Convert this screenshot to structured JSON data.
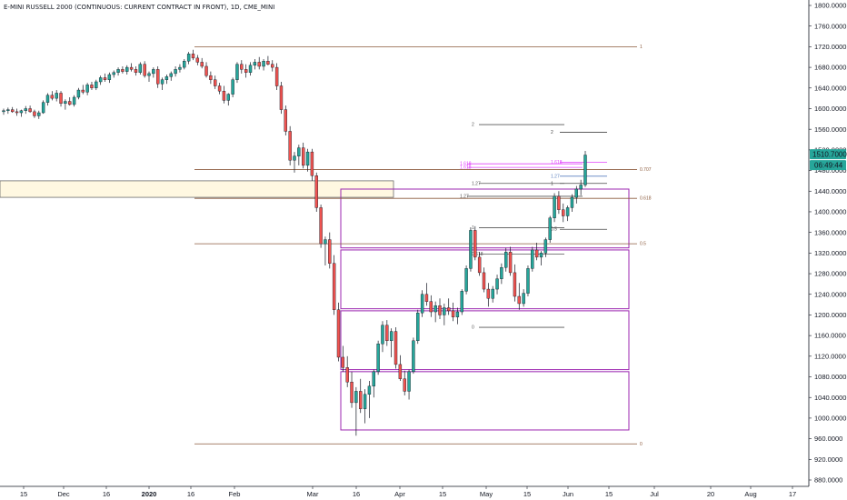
{
  "header": {
    "title": "E-MINI RUSSELL 2000 (CONTINUOUS: CURRENT CONTRACT IN FRONT), 1D, CME_MINI"
  },
  "price_badge": {
    "price": "1510.7000",
    "countdown": "06:49:44",
    "color": "#26a69a"
  },
  "colors": {
    "up": "#26a69a",
    "down": "#ef5350",
    "wick": "#131722",
    "fib_brown": "#8b5a3c",
    "fib_pink": "#e040fb",
    "box_purple": "#9c27b0",
    "zone_fill": "#fff8e1"
  },
  "chart_data": {
    "type": "candlestick",
    "y_axis": {
      "ylim": [
        870,
        1810
      ],
      "ticks": [
        "1800.0000",
        "1760.0000",
        "1720.0000",
        "1680.0000",
        "1640.0000",
        "1600.0000",
        "1560.0000",
        "1520.0000",
        "1480.0000",
        "1440.0000",
        "1400.0000",
        "1360.0000",
        "1320.0000",
        "1280.0000",
        "1240.0000",
        "1200.0000",
        "1160.0000",
        "1120.0000",
        "1080.0000",
        "1040.0000",
        "1000.0000",
        "960.0000",
        "920.0000",
        "880.0000"
      ]
    },
    "x_axis": {
      "ticks": [
        {
          "label": "15",
          "bold": false
        },
        {
          "label": "Dec",
          "bold": false
        },
        {
          "label": "16",
          "bold": false
        },
        {
          "label": "2020",
          "bold": true
        },
        {
          "label": "16",
          "bold": false
        },
        {
          "label": "Feb",
          "bold": false
        },
        {
          "label": "Mar",
          "bold": false
        },
        {
          "label": "16",
          "bold": false
        },
        {
          "label": "Apr",
          "bold": false
        },
        {
          "label": "15",
          "bold": false
        },
        {
          "label": "May",
          "bold": false
        },
        {
          "label": "15",
          "bold": false
        },
        {
          "label": "Jun",
          "bold": false
        },
        {
          "label": "15",
          "bold": false
        },
        {
          "label": "Jul",
          "bold": false
        },
        {
          "label": "20",
          "bold": false
        },
        {
          "label": "Aug",
          "bold": false
        },
        {
          "label": "17",
          "bold": false
        }
      ]
    },
    "candles": [
      [
        1594,
        1600,
        1588,
        1596
      ],
      [
        1596,
        1602,
        1590,
        1598
      ],
      [
        1598,
        1603,
        1592,
        1594
      ],
      [
        1594,
        1600,
        1586,
        1592
      ],
      [
        1592,
        1598,
        1584,
        1596
      ],
      [
        1596,
        1605,
        1590,
        1600
      ],
      [
        1600,
        1606,
        1592,
        1594
      ],
      [
        1594,
        1598,
        1582,
        1586
      ],
      [
        1586,
        1596,
        1580,
        1592
      ],
      [
        1592,
        1616,
        1590,
        1612
      ],
      [
        1612,
        1630,
        1606,
        1626
      ],
      [
        1626,
        1634,
        1616,
        1620
      ],
      [
        1620,
        1636,
        1614,
        1630
      ],
      [
        1630,
        1634,
        1604,
        1610
      ],
      [
        1610,
        1618,
        1598,
        1614
      ],
      [
        1614,
        1622,
        1606,
        1608
      ],
      [
        1608,
        1626,
        1604,
        1622
      ],
      [
        1622,
        1640,
        1618,
        1636
      ],
      [
        1636,
        1646,
        1628,
        1632
      ],
      [
        1632,
        1650,
        1626,
        1646
      ],
      [
        1646,
        1652,
        1636,
        1640
      ],
      [
        1640,
        1656,
        1636,
        1652
      ],
      [
        1652,
        1664,
        1646,
        1660
      ],
      [
        1660,
        1668,
        1652,
        1656
      ],
      [
        1656,
        1670,
        1650,
        1666
      ],
      [
        1666,
        1674,
        1660,
        1670
      ],
      [
        1670,
        1680,
        1664,
        1676
      ],
      [
        1676,
        1682,
        1668,
        1672
      ],
      [
        1672,
        1684,
        1666,
        1680
      ],
      [
        1680,
        1688,
        1672,
        1676
      ],
      [
        1676,
        1682,
        1664,
        1670
      ],
      [
        1670,
        1690,
        1666,
        1686
      ],
      [
        1686,
        1692,
        1660,
        1664
      ],
      [
        1664,
        1672,
        1652,
        1668
      ],
      [
        1668,
        1680,
        1660,
        1676
      ],
      [
        1676,
        1682,
        1640,
        1648
      ],
      [
        1648,
        1660,
        1636,
        1656
      ],
      [
        1656,
        1666,
        1648,
        1662
      ],
      [
        1662,
        1672,
        1654,
        1668
      ],
      [
        1668,
        1682,
        1662,
        1676
      ],
      [
        1676,
        1686,
        1670,
        1680
      ],
      [
        1680,
        1696,
        1676,
        1692
      ],
      [
        1692,
        1710,
        1686,
        1706
      ],
      [
        1706,
        1714,
        1694,
        1698
      ],
      [
        1698,
        1704,
        1684,
        1690
      ],
      [
        1690,
        1698,
        1678,
        1682
      ],
      [
        1682,
        1690,
        1660,
        1664
      ],
      [
        1664,
        1672,
        1648,
        1656
      ],
      [
        1656,
        1664,
        1638,
        1644
      ],
      [
        1644,
        1650,
        1628,
        1634
      ],
      [
        1634,
        1644,
        1610,
        1616
      ],
      [
        1616,
        1630,
        1606,
        1628
      ],
      [
        1628,
        1660,
        1622,
        1656
      ],
      [
        1656,
        1690,
        1650,
        1686
      ],
      [
        1686,
        1694,
        1668,
        1676
      ],
      [
        1676,
        1686,
        1660,
        1670
      ],
      [
        1670,
        1690,
        1664,
        1684
      ],
      [
        1684,
        1696,
        1676,
        1690
      ],
      [
        1690,
        1700,
        1676,
        1682
      ],
      [
        1682,
        1696,
        1674,
        1692
      ],
      [
        1692,
        1702,
        1684,
        1686
      ],
      [
        1686,
        1694,
        1672,
        1680
      ],
      [
        1680,
        1688,
        1636,
        1644
      ],
      [
        1644,
        1652,
        1590,
        1598
      ],
      [
        1598,
        1606,
        1548,
        1556
      ],
      [
        1556,
        1566,
        1490,
        1500
      ],
      [
        1500,
        1516,
        1476,
        1508
      ],
      [
        1508,
        1530,
        1490,
        1524
      ],
      [
        1524,
        1534,
        1484,
        1490
      ],
      [
        1490,
        1522,
        1478,
        1516
      ],
      [
        1516,
        1522,
        1460,
        1470
      ],
      [
        1470,
        1476,
        1400,
        1408
      ],
      [
        1408,
        1414,
        1330,
        1338
      ],
      [
        1338,
        1352,
        1296,
        1346
      ],
      [
        1346,
        1360,
        1290,
        1300
      ],
      [
        1300,
        1316,
        1200,
        1210
      ],
      [
        1210,
        1224,
        1110,
        1118
      ],
      [
        1118,
        1140,
        1090,
        1098
      ],
      [
        1098,
        1120,
        1060,
        1070
      ],
      [
        1070,
        1090,
        1020,
        1030
      ],
      [
        1030,
        1060,
        966,
        1052
      ],
      [
        1052,
        1076,
        1010,
        1018
      ],
      [
        1018,
        1056,
        990,
        1046
      ],
      [
        1046,
        1072,
        1000,
        1062
      ],
      [
        1062,
        1094,
        1040,
        1090
      ],
      [
        1090,
        1150,
        1084,
        1144
      ],
      [
        1144,
        1188,
        1128,
        1180
      ],
      [
        1180,
        1190,
        1140,
        1150
      ],
      [
        1150,
        1174,
        1118,
        1168
      ],
      [
        1168,
        1176,
        1096,
        1104
      ],
      [
        1104,
        1122,
        1072,
        1076
      ],
      [
        1076,
        1092,
        1044,
        1052
      ],
      [
        1052,
        1094,
        1036,
        1090
      ],
      [
        1090,
        1156,
        1086,
        1150
      ],
      [
        1150,
        1210,
        1144,
        1204
      ],
      [
        1204,
        1248,
        1196,
        1240
      ],
      [
        1240,
        1262,
        1218,
        1226
      ],
      [
        1226,
        1238,
        1196,
        1206
      ],
      [
        1206,
        1226,
        1186,
        1218
      ],
      [
        1218,
        1232,
        1192,
        1200
      ],
      [
        1200,
        1222,
        1180,
        1214
      ],
      [
        1214,
        1232,
        1200,
        1208
      ],
      [
        1208,
        1224,
        1188,
        1196
      ],
      [
        1196,
        1214,
        1182,
        1206
      ],
      [
        1206,
        1250,
        1200,
        1246
      ],
      [
        1246,
        1296,
        1240,
        1290
      ],
      [
        1290,
        1370,
        1284,
        1364
      ],
      [
        1364,
        1372,
        1306,
        1312
      ],
      [
        1312,
        1322,
        1276,
        1282
      ],
      [
        1282,
        1292,
        1244,
        1250
      ],
      [
        1250,
        1262,
        1216,
        1232
      ],
      [
        1232,
        1256,
        1224,
        1250
      ],
      [
        1250,
        1278,
        1240,
        1270
      ],
      [
        1270,
        1300,
        1260,
        1292
      ],
      [
        1292,
        1330,
        1284,
        1322
      ],
      [
        1322,
        1332,
        1276,
        1282
      ],
      [
        1282,
        1298,
        1226,
        1236
      ],
      [
        1236,
        1262,
        1210,
        1222
      ],
      [
        1222,
        1250,
        1216,
        1242
      ],
      [
        1242,
        1296,
        1236,
        1290
      ],
      [
        1290,
        1332,
        1284,
        1326
      ],
      [
        1326,
        1340,
        1306,
        1312
      ],
      [
        1312,
        1324,
        1296,
        1320
      ],
      [
        1320,
        1350,
        1312,
        1346
      ],
      [
        1346,
        1392,
        1340,
        1388
      ],
      [
        1388,
        1436,
        1380,
        1430
      ],
      [
        1430,
        1440,
        1396,
        1404
      ],
      [
        1404,
        1416,
        1380,
        1392
      ],
      [
        1392,
        1412,
        1382,
        1408
      ],
      [
        1408,
        1434,
        1400,
        1428
      ],
      [
        1428,
        1450,
        1416,
        1444
      ],
      [
        1444,
        1462,
        1432,
        1452
      ],
      [
        1452,
        1518,
        1448,
        1510
      ]
    ],
    "fib_left": {
      "labels": [
        "1",
        "0.707",
        "0.618",
        "0.5",
        "0"
      ],
      "values": [
        1720,
        1482,
        1426,
        1338,
        950
      ],
      "color": "#8b5a3c"
    },
    "fib_upper": {
      "labels": [
        "2",
        "1.618",
        "1.618",
        "1.27",
        "1.27",
        "1",
        "0.618",
        "0"
      ],
      "values": [
        1569,
        1486,
        1493,
        1455,
        1430,
        1369,
        1318,
        1176
      ]
    },
    "fib_right_small": {
      "labels": [
        "2",
        "1.618",
        "1.27",
        "1",
        "0.5"
      ],
      "values": [
        1554,
        1496,
        1469,
        1455,
        1366
      ]
    },
    "supply_zone": {
      "y_top": 1460,
      "y_bottom": 1428
    },
    "boxes": [
      {
        "y_top": 1444,
        "y_bottom": 1330
      },
      {
        "y_top": 1326,
        "y_bottom": 1212
      },
      {
        "y_top": 1208,
        "y_bottom": 1094
      },
      {
        "y_top": 1090,
        "y_bottom": 977
      }
    ]
  }
}
